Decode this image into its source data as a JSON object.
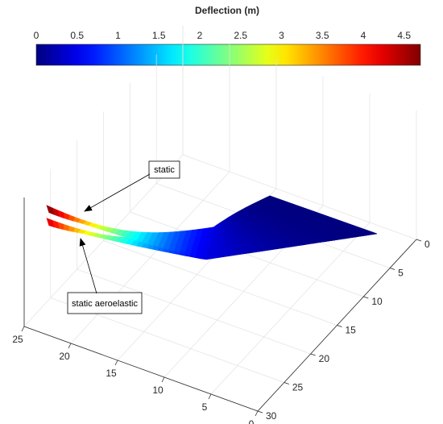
{
  "chart_data": {
    "type": "surface",
    "colorbar": {
      "title": "Deflection (m)",
      "range": [
        0,
        4.7
      ],
      "ticks": [
        "0",
        "0.5",
        "1",
        "1.5",
        "2",
        "2.5",
        "3",
        "3.5",
        "4",
        "4.5"
      ],
      "tick_values": [
        0,
        0.5,
        1,
        1.5,
        2,
        2.5,
        3,
        3.5,
        4,
        4.5
      ],
      "colormap": "jet",
      "placement": "top"
    },
    "axes": {
      "x_ticks": [
        "0",
        "5",
        "10",
        "15",
        "20",
        "25",
        "30"
      ],
      "x_values": [
        0,
        5,
        10,
        15,
        20,
        25,
        30
      ],
      "y_ticks": [
        "0",
        "5",
        "10",
        "15",
        "20",
        "25"
      ],
      "y_values": [
        0,
        5,
        10,
        15,
        20,
        25
      ],
      "x_range": [
        0,
        30
      ],
      "y_range": [
        0,
        25
      ],
      "grid": true,
      "box": "3d"
    },
    "series": [
      {
        "name": "static",
        "max_deflection": 4.7
      },
      {
        "name": "static aeroelastic",
        "max_deflection": 4.3
      }
    ],
    "annotations": [
      "static",
      "static aeroelastic"
    ]
  }
}
